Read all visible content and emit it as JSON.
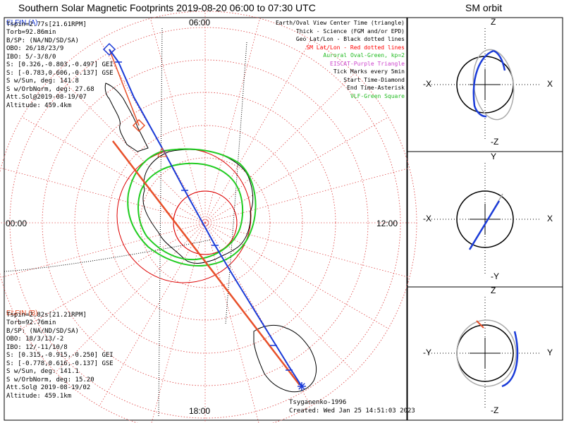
{
  "title": "Southern Solar Magnetic Footprints 2019-08-20 06:00 to 07:30 UTC",
  "orbit_title": "SM orbit",
  "polar_labels": {
    "top": "06:00",
    "left": "00:00",
    "right": "12:00",
    "bottom": "18:00"
  },
  "legend": [
    {
      "text": "Earth/Oval View Center Time (triangle)",
      "color": "#000000"
    },
    {
      "text": "Thick - Science (FGM and/or EPD)",
      "color": "#000000"
    },
    {
      "text": "Geo Lat/Lon - Black dotted lines",
      "color": "#000000"
    },
    {
      "text": "SM Lat/Lon - Red dotted lines",
      "color": "#ff0000"
    },
    {
      "text": "Auroral Oval-Green, kp=2",
      "color": "#22bb22"
    },
    {
      "text": "EISCAT-Purple Triangle",
      "color": "#cc44cc"
    },
    {
      "text": "Tick Marks every 5min",
      "color": "#000000"
    },
    {
      "text": "Start Time-Diamond",
      "color": "#000000"
    },
    {
      "text": "End Time-Asterisk",
      "color": "#000000"
    },
    {
      "text": "VLF-Green Square",
      "color": "#22bb22"
    }
  ],
  "elfin_a": {
    "name": "ELFIN (A)",
    "color": "#1a3bd8",
    "lines": [
      "Tspin=2.77s[21.61RPM]",
      "Torb=92.86min",
      "B/SP: (NA/ND/SD/SA)",
      "OBO: 26/18/23/9",
      "IBO: 5/-3/8/0",
      "S: [0.326,-0.803,-0.497] GEI",
      "S: [-0.783,0.606,-0.137] GSE",
      "S w/Sun, deg: 141.8",
      "S w/OrbNorm, deg: 27.68",
      "Att.Sol@2019-08-19/07",
      "Altitude: 459.4km"
    ]
  },
  "elfin_b": {
    "name": "ELFIN (B)",
    "color": "#e8502a",
    "lines": [
      "Tspin=2.82s[21.21RPM]",
      "Torb=92.76min",
      "B/SP: (NA/ND/SD/SA)",
      "OBO: 18/3/13/-2",
      "IBO: 12/-11/10/8",
      "S: [0.315,-0.915,-0.250] GEI",
      "S: [-0.778,0.616,-0.137] GSE",
      "S w/Sun, deg: 141.1",
      "S w/OrbNorm, deg: 15.20",
      "Att.Sol@ 2019-08-19/02",
      "Altitude: 459.1km"
    ]
  },
  "footer": {
    "credit": "Tsyganenko-1996",
    "created": "Created: Wed Jan 25 14:51:03 2023"
  },
  "orbit_panels": [
    {
      "top": "Z",
      "bottom": "-Z",
      "left": "-X",
      "right": "X"
    },
    {
      "top": "Y",
      "bottom": "-Y",
      "left": "-X",
      "right": "X"
    },
    {
      "top": "Z",
      "bottom": "-Z",
      "left": "-Y",
      "right": "Y"
    }
  ],
  "colors": {
    "a": "#1a3bd8",
    "b": "#e8502a",
    "oval": "#22cc22",
    "grid_sm": "#e05050",
    "grid_geo": "#000000"
  }
}
